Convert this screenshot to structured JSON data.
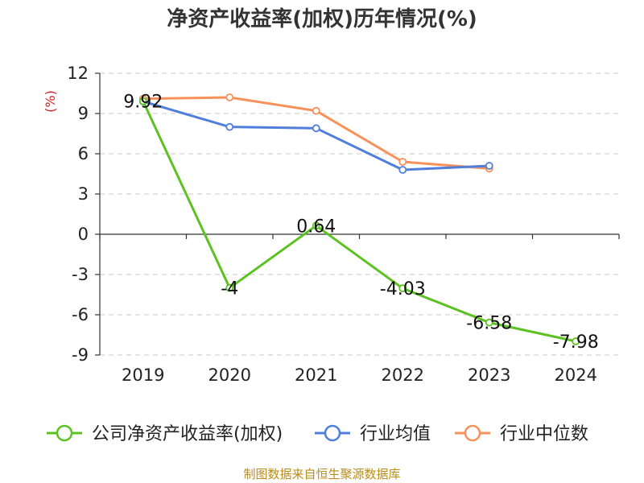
{
  "chart_data": {
    "type": "line",
    "title": "净资产收益率(加权)历年情况(%)",
    "ylabel": "(%)",
    "xlabel": "",
    "categories": [
      "2019",
      "2020",
      "2021",
      "2022",
      "2023",
      "2024"
    ],
    "ylim": [
      -9,
      12
    ],
    "yticks": [
      12,
      9,
      6,
      3,
      0,
      -3,
      -6,
      -9
    ],
    "grid": "horizontal-dashed",
    "legend_position": "bottom",
    "series": [
      {
        "name": "公司净资产收益率(加权)",
        "color": "#5cc221",
        "values": [
          9.92,
          -4,
          0.64,
          -4.03,
          -6.58,
          -7.98
        ],
        "labels": [
          "9.92",
          "-4",
          "0.64",
          "-4.03",
          "-6.58",
          "-7.98"
        ]
      },
      {
        "name": "行业均值",
        "color": "#4f7fdb",
        "values": [
          9.9,
          8.0,
          7.9,
          4.8,
          5.1,
          null
        ]
      },
      {
        "name": "行业中位数",
        "color": "#f7915a",
        "values": [
          10.1,
          10.2,
          9.2,
          5.4,
          4.9,
          null
        ]
      }
    ]
  },
  "footer": {
    "source": "制图数据来自恒生聚源数据库"
  }
}
